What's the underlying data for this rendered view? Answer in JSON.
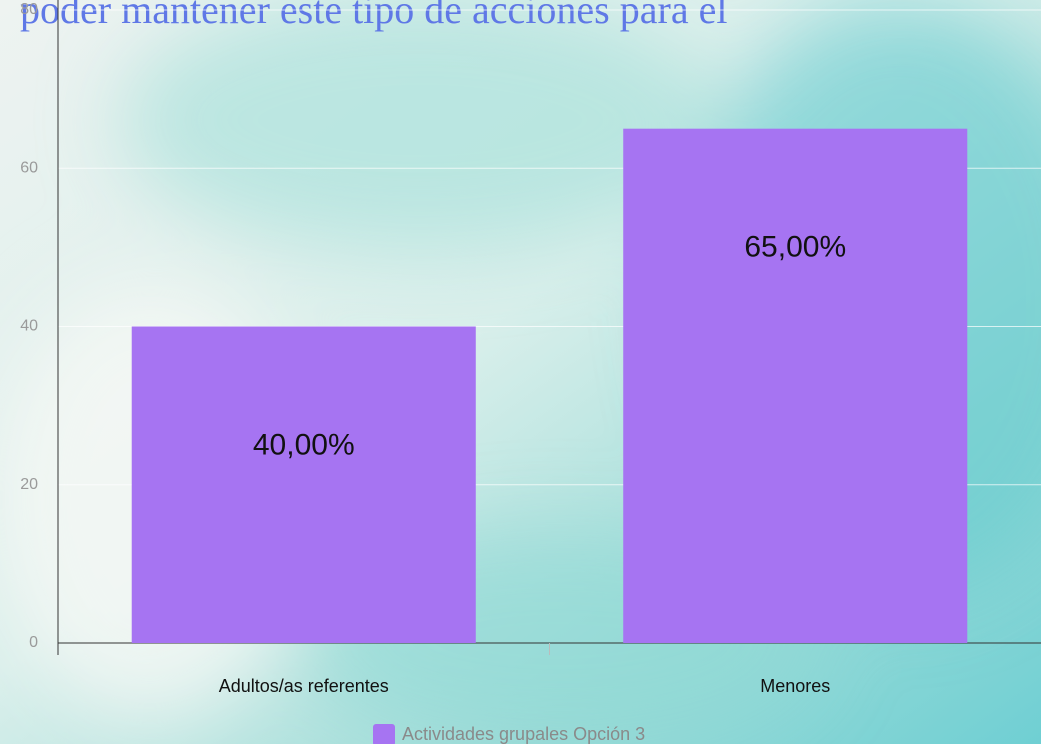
{
  "overlay_text": "poder mantener este tipo de acciones para el",
  "chart_data": {
    "type": "bar",
    "categories": [
      "Adultos/as referentes",
      "Menores"
    ],
    "series": [
      {
        "name": "Actividades grupales Opción 3",
        "color": "#a674f2",
        "values": [
          40,
          65
        ],
        "value_labels": [
          "40,00%",
          "65,00%"
        ]
      }
    ],
    "ylim": [
      0,
      80
    ],
    "yticks": [
      0,
      20,
      40,
      60,
      80
    ],
    "grid": true,
    "legend": "bottom"
  }
}
